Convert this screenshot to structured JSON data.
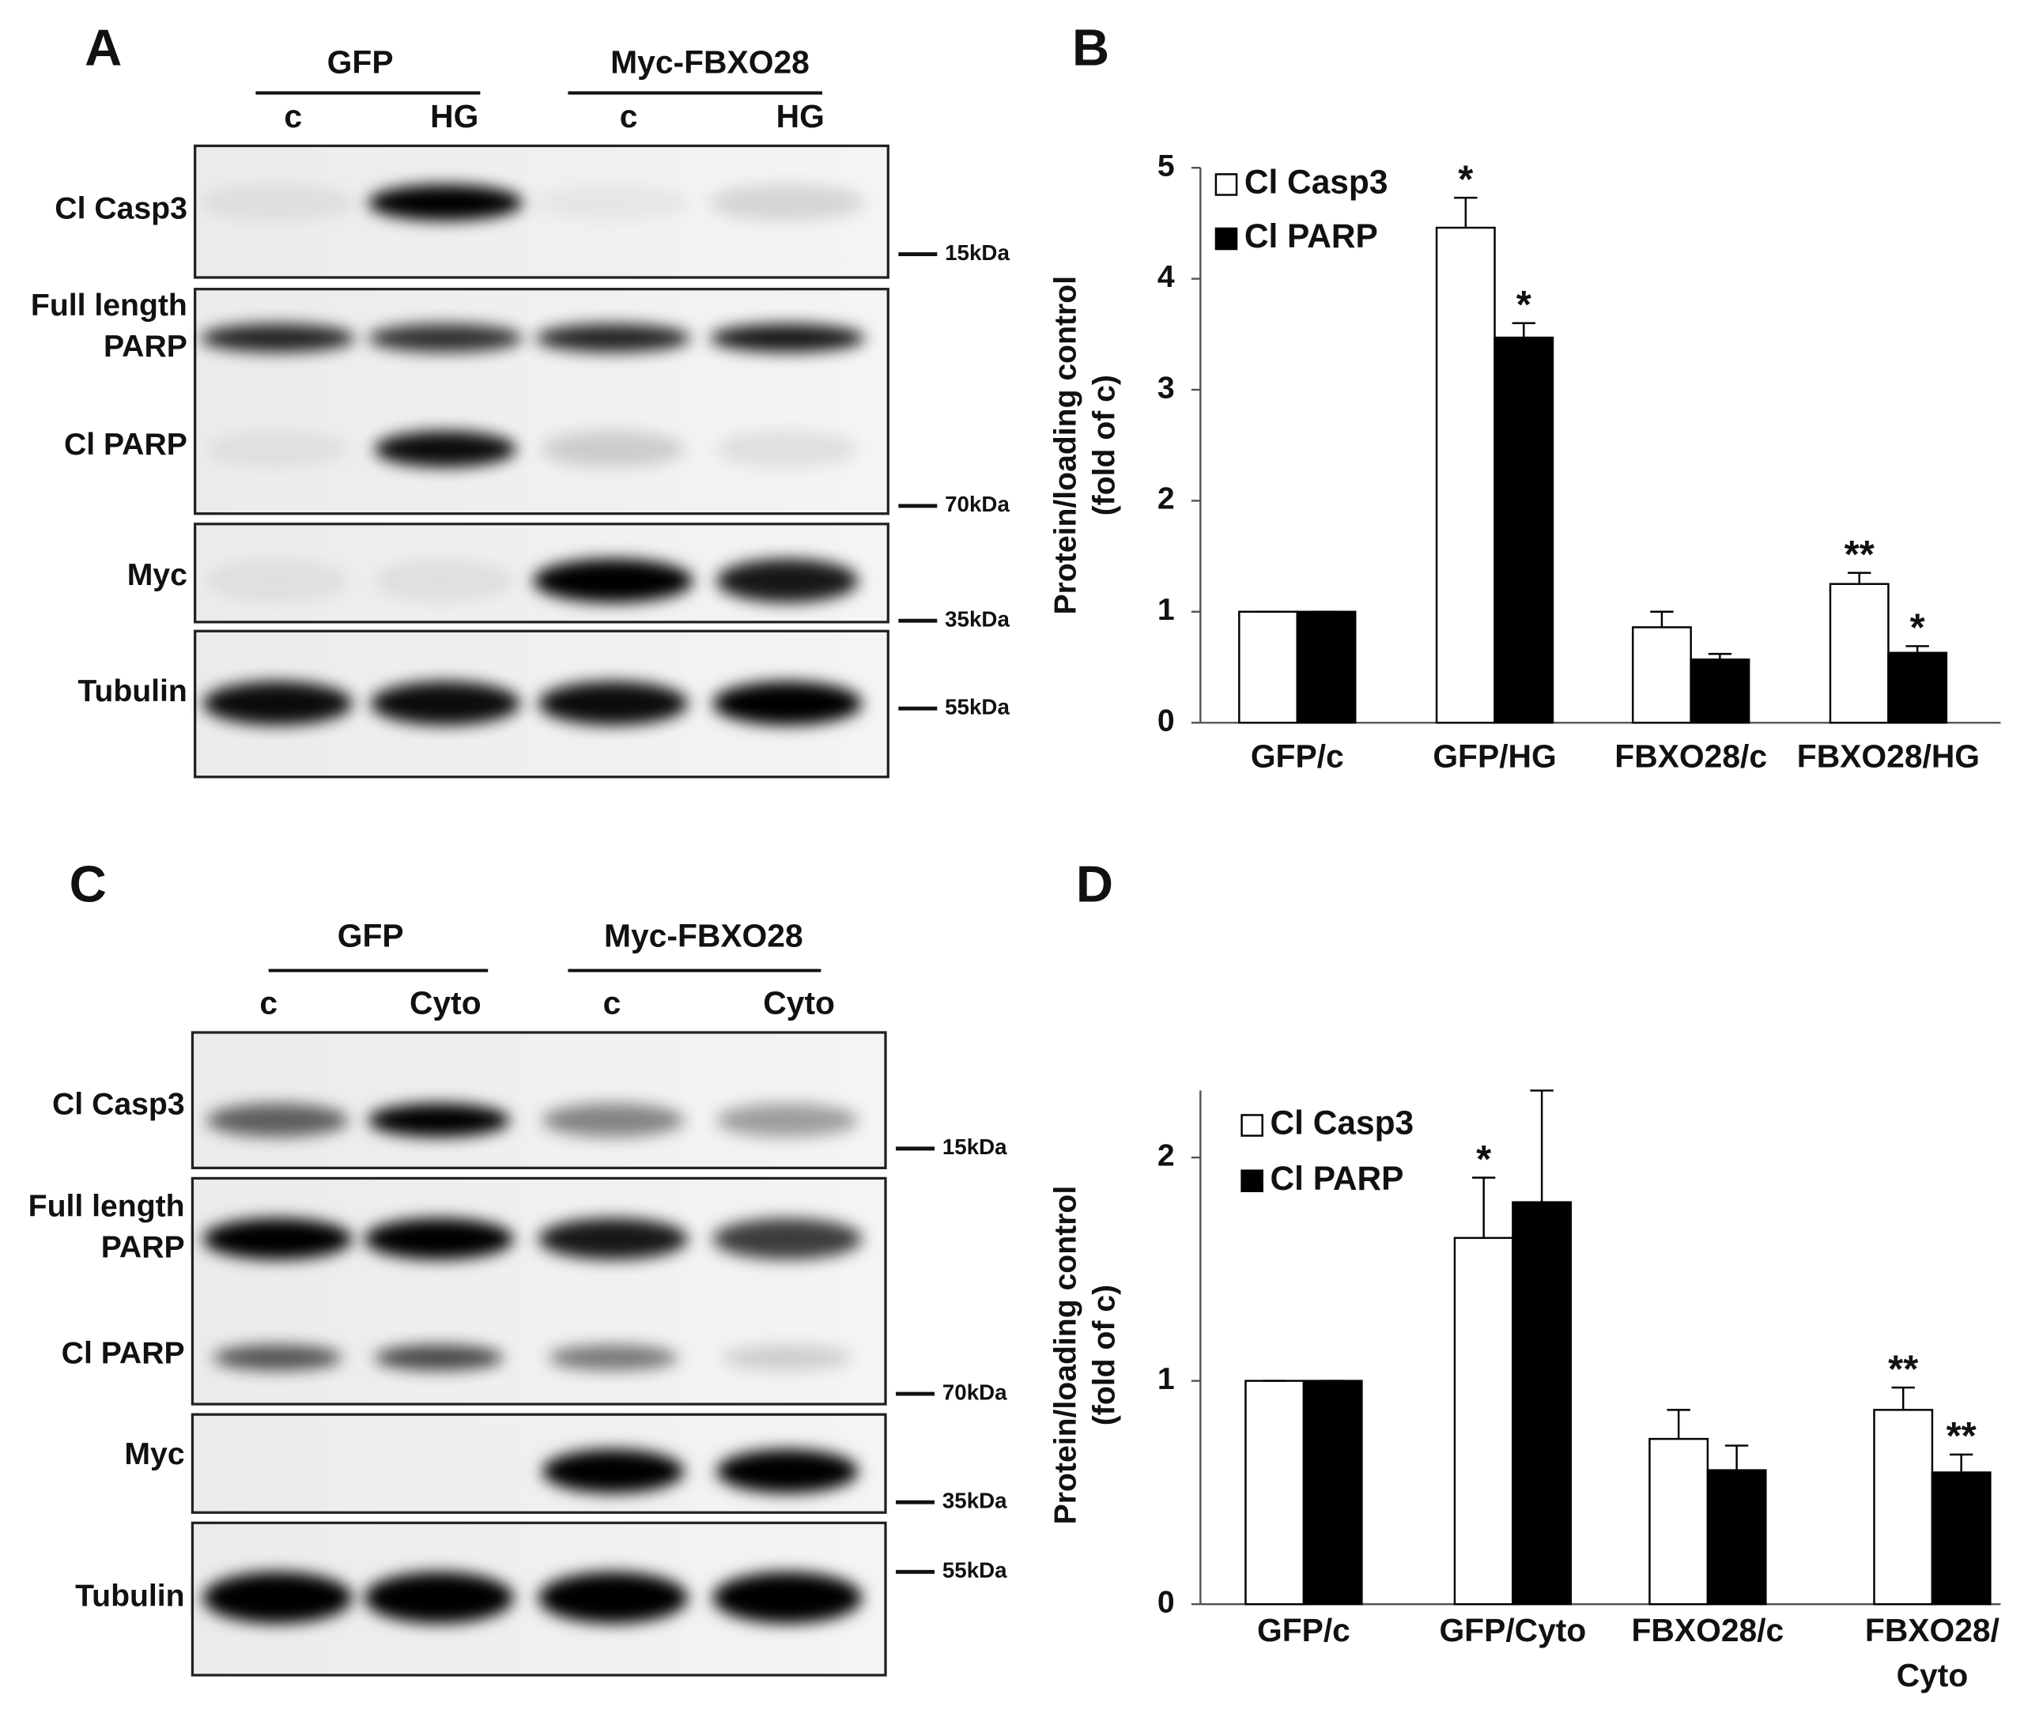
{
  "blots": [
    {
      "letter": "A",
      "groups": [
        {
          "label": "GFP",
          "lanes": [
            "c",
            "HG"
          ]
        },
        {
          "label": "Myc-FBXO28",
          "lanes": [
            "c",
            "HG"
          ]
        }
      ],
      "rows": [
        {
          "labels": [
            "Cl Casp3"
          ],
          "marker": "15kDa"
        },
        {
          "labels": [
            "Full length",
            "PARP",
            "Cl PARP"
          ],
          "marker": "70kDa"
        },
        {
          "labels": [
            "Myc"
          ],
          "marker": "35kDa"
        },
        {
          "labels": [
            "Tubulin"
          ],
          "marker": "55kDa"
        }
      ]
    },
    {
      "letter": "C",
      "groups": [
        {
          "label": "GFP",
          "lanes": [
            "c",
            "Cyto"
          ]
        },
        {
          "label": "Myc-FBXO28",
          "lanes": [
            "c",
            "Cyto"
          ]
        }
      ],
      "rows": [
        {
          "labels": [
            "Cl Casp3"
          ],
          "marker": "15kDa"
        },
        {
          "labels": [
            "Full length",
            "PARP",
            "Cl PARP"
          ],
          "marker": "70kDa"
        },
        {
          "labels": [
            "Myc"
          ],
          "marker": "35kDa"
        },
        {
          "labels": [
            "Tubulin"
          ],
          "marker": "55kDa"
        }
      ]
    }
  ],
  "chart_data": [
    {
      "type": "bar",
      "panel_label": "B",
      "ylabel": [
        "Protein/loading control",
        "(fold of c)"
      ],
      "categories": [
        "GFP/c",
        "GFP/HG",
        "FBXO28/c",
        "FBXO28/HG"
      ],
      "series": [
        {
          "name": "Cl Casp3",
          "color": "#ffffff",
          "values": [
            1,
            4.46,
            0.86,
            1.25
          ],
          "errors": [
            0,
            0.27,
            0.14,
            0.1
          ],
          "annotations": [
            null,
            "*",
            null,
            "**"
          ]
        },
        {
          "name": "Cl PARP",
          "color": "#000000",
          "values": [
            1,
            3.47,
            0.57,
            0.63
          ],
          "errors": [
            0,
            0.13,
            0.05,
            0.06
          ],
          "annotations": [
            null,
            "*",
            null,
            "*"
          ]
        }
      ],
      "ylim": [
        0,
        5
      ],
      "yticks": [
        0,
        1,
        2,
        3,
        4,
        5
      ],
      "legend": "upper left"
    },
    {
      "type": "bar",
      "panel_label": "D",
      "ylabel": [
        "Protein/loading control",
        "(fold of c)"
      ],
      "categories": [
        "GFP/c",
        "GFP/Cyto",
        "FBXO28/c",
        [
          "FBXO28/",
          "Cyto"
        ]
      ],
      "series": [
        {
          "name": "Cl Casp3",
          "color": "#ffffff",
          "values": [
            1,
            1.64,
            0.74,
            0.87
          ],
          "errors": [
            0,
            0.27,
            0.13,
            0.1
          ],
          "annotations": [
            null,
            "*",
            null,
            "**"
          ]
        },
        {
          "name": "Cl PARP",
          "color": "#000000",
          "values": [
            1,
            1.8,
            0.6,
            0.59
          ],
          "errors": [
            0,
            0.5,
            0.11,
            0.08
          ],
          "annotations": [
            null,
            null,
            null,
            "**"
          ]
        }
      ],
      "ylim": [
        0,
        2.3
      ],
      "yticks": [
        0,
        1,
        2
      ],
      "legend": "upper left"
    }
  ]
}
